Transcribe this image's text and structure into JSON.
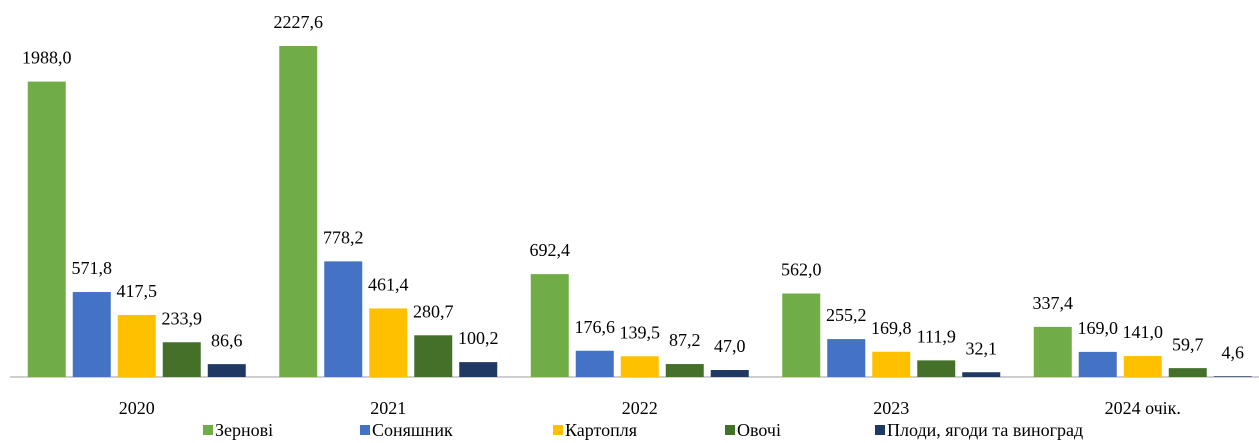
{
  "chart_data": {
    "type": "bar",
    "categories": [
      "2020",
      "2021",
      "2022",
      "2023",
      "2024 очік."
    ],
    "series": [
      {
        "name": "Зернові",
        "color": "#70ad47",
        "values": [
          1988.0,
          2227.6,
          692.4,
          562.0,
          337.4
        ],
        "value_labels": [
          "1988,0",
          "2227,6",
          "692,4",
          "562,0",
          "337,4"
        ]
      },
      {
        "name": "Соняшник",
        "color": "#4472c4",
        "values": [
          571.8,
          778.2,
          176.6,
          255.2,
          169.0
        ],
        "value_labels": [
          "571,8",
          "778,2",
          "176,6",
          "255,2",
          "169,0"
        ]
      },
      {
        "name": "Картопля",
        "color": "#ffc000",
        "values": [
          417.5,
          461.4,
          139.5,
          169.8,
          141.0
        ],
        "value_labels": [
          "417,5",
          "461,4",
          "139,5",
          "169,8",
          "141,0"
        ]
      },
      {
        "name": "Овочі",
        "color": "#44702a",
        "values": [
          233.9,
          280.7,
          87.2,
          111.9,
          59.7
        ],
        "value_labels": [
          "233,9",
          "280,7",
          "87,2",
          "111,9",
          "59,7"
        ]
      },
      {
        "name": "Плоди, ягоди та виноград",
        "color": "#203864",
        "values": [
          86.6,
          100.2,
          47.0,
          32.1,
          4.6
        ],
        "value_labels": [
          "86,6",
          "100,2",
          "47,0",
          "32,1",
          "4,6"
        ]
      }
    ],
    "legend": "bottom"
  }
}
